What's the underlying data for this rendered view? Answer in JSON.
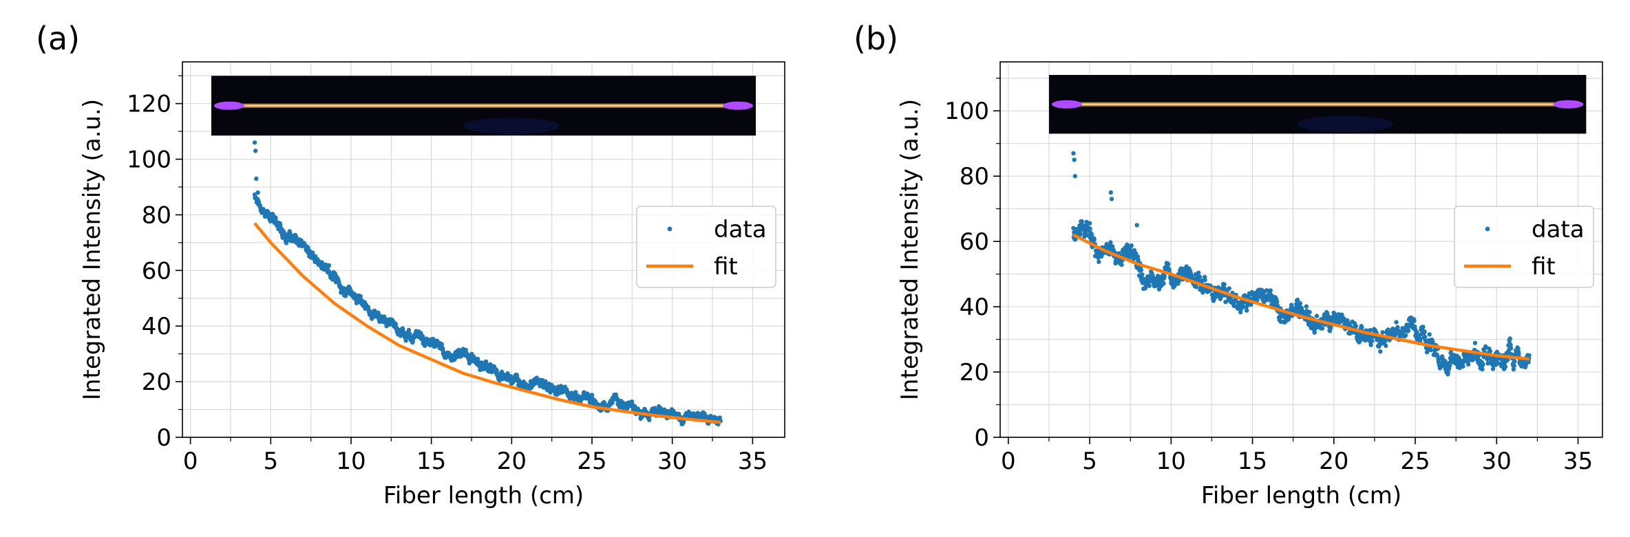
{
  "chart_data": [
    {
      "panel_label": "(a)",
      "type": "scatter",
      "xlabel": "Fiber length (cm)",
      "ylabel": "Integrated Intensity (a.u.)",
      "xlim": [
        -0.5,
        37
      ],
      "ylim": [
        0,
        135
      ],
      "xticks": [
        0,
        5,
        10,
        15,
        20,
        25,
        30,
        35
      ],
      "yticks": [
        0,
        20,
        40,
        60,
        80,
        100,
        120
      ],
      "grid": true,
      "legend": "center-right",
      "inset_image": "fiber photo with glowing purple ends",
      "series": [
        {
          "name": "data",
          "kind": "points",
          "color": "#1f77b4",
          "x_range": [
            4,
            33
          ],
          "model": "exponential decay",
          "y_start": 87,
          "y_end": 7,
          "noise": 2.5,
          "peak_points": [
            [
              4.0,
              106
            ],
            [
              4.05,
              103
            ],
            [
              4.1,
              93
            ],
            [
              4.2,
              88
            ]
          ]
        },
        {
          "name": "fit",
          "kind": "line",
          "color": "#ff7f0e",
          "x": [
            4,
            5,
            7,
            9,
            11,
            13,
            15,
            17,
            19,
            21,
            23,
            25,
            27,
            29,
            31,
            33
          ],
          "y": [
            77,
            70,
            58,
            48,
            40,
            33,
            28,
            23,
            19.5,
            16.5,
            13.5,
            11,
            9.3,
            7.8,
            6.5,
            5.4
          ]
        }
      ]
    },
    {
      "panel_label": "(b)",
      "type": "scatter",
      "xlabel": "Fiber length (cm)",
      "ylabel": "Integrated Intensity (a.u.)",
      "xlim": [
        -0.5,
        36.5
      ],
      "ylim": [
        0,
        115
      ],
      "xticks": [
        0,
        5,
        10,
        15,
        20,
        25,
        30,
        35
      ],
      "yticks": [
        0,
        20,
        40,
        60,
        80,
        100
      ],
      "grid": true,
      "legend": "center-right",
      "inset_image": "fiber photo with glowing purple ends",
      "series": [
        {
          "name": "data",
          "kind": "points",
          "color": "#1f77b4",
          "x_range": [
            4,
            32
          ],
          "model": "exponential decay",
          "y_start": 63,
          "y_end": 22,
          "noise": 4,
          "peak_points": [
            [
              4.0,
              87
            ],
            [
              4.05,
              85
            ],
            [
              4.1,
              80
            ],
            [
              6.3,
              75
            ],
            [
              6.35,
              73
            ],
            [
              7.9,
              65
            ]
          ]
        },
        {
          "name": "fit",
          "kind": "line",
          "color": "#ff7f0e",
          "x": [
            4,
            6,
            8,
            10,
            12,
            14,
            16,
            18,
            20,
            22,
            24,
            26,
            28,
            30,
            32
          ],
          "y": [
            62,
            57,
            53,
            50,
            46.5,
            43,
            40,
            37,
            34.5,
            32,
            30,
            28,
            26.5,
            25,
            24
          ]
        }
      ]
    }
  ]
}
